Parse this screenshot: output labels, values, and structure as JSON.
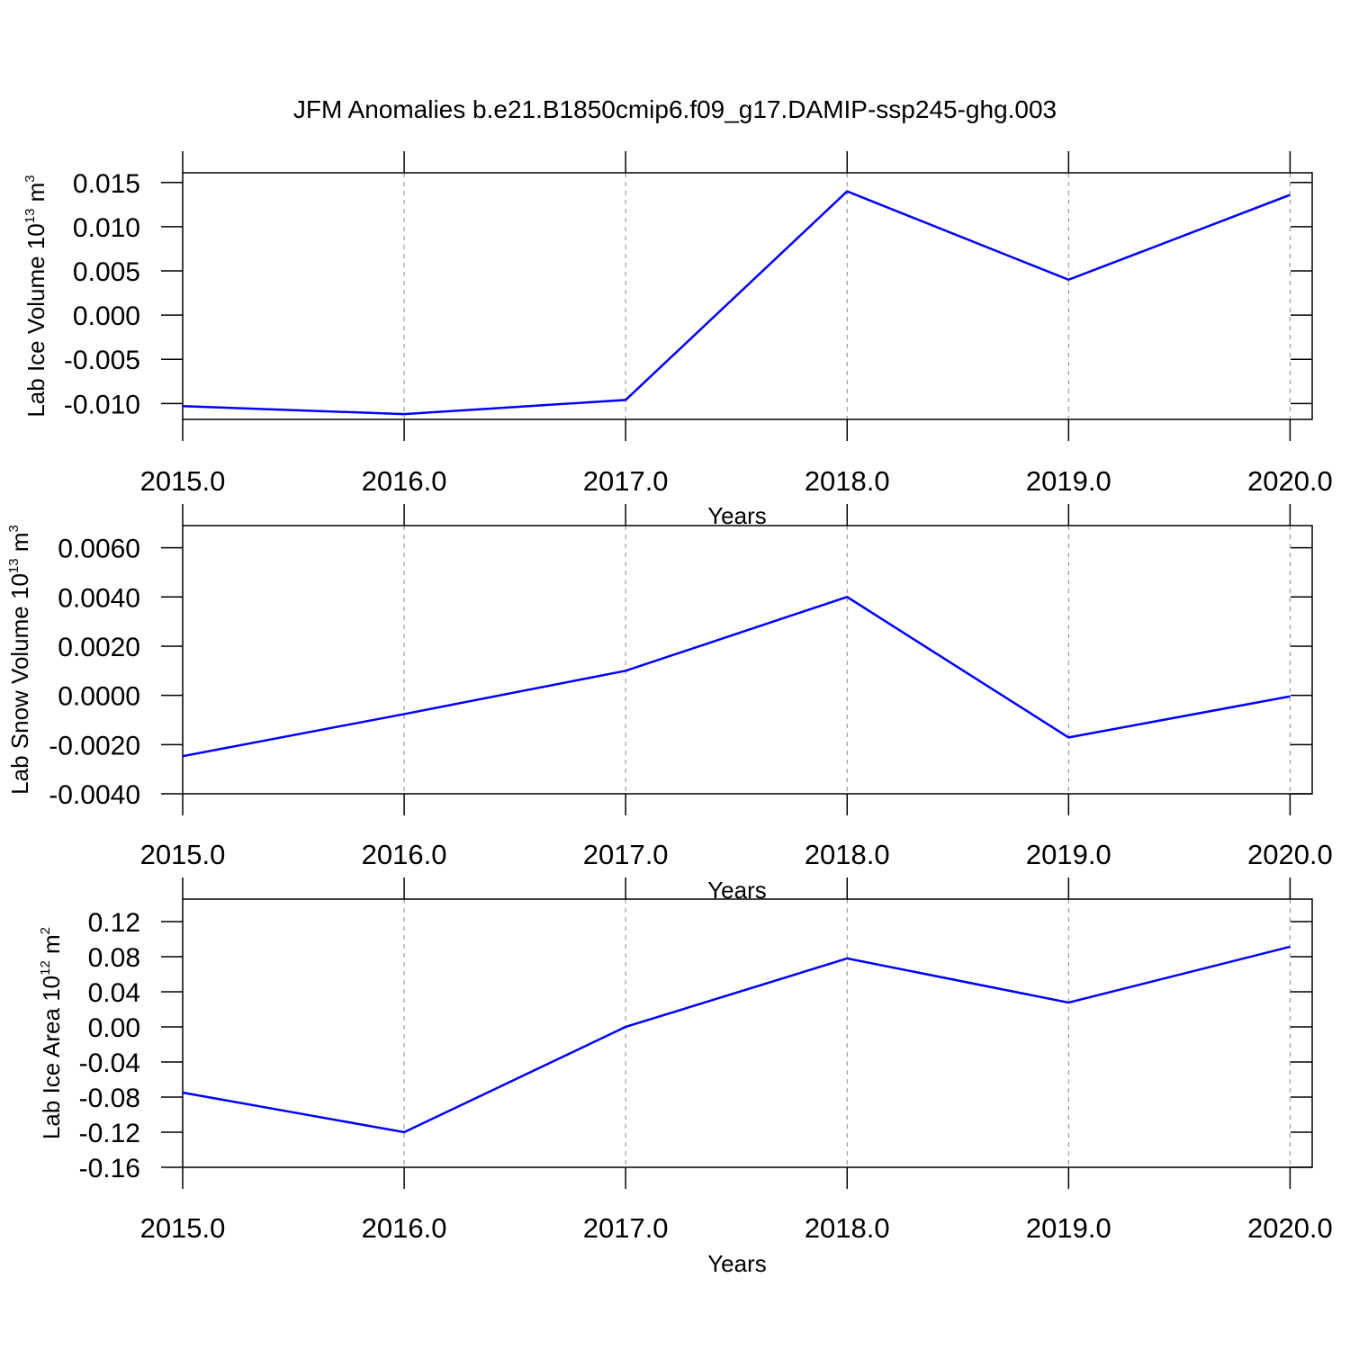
{
  "title": "JFM Anomalies b.e21.B1850cmip6.f09_g17.DAMIP-ssp245-ghg.003",
  "chart_data": [
    {
      "type": "line",
      "x_label": "Years",
      "y_label": {
        "text": "Lab Ice Volume 10",
        "exponent": "13",
        "unit": " m",
        "unit_power": "3"
      },
      "x": [
        2015,
        2016,
        2017,
        2018,
        2019,
        2020
      ],
      "values": [
        -0.0103,
        -0.0112,
        -0.0096,
        0.014,
        0.004,
        0.0136
      ],
      "color": "#0000ff",
      "xlim": [
        2015,
        2020.1
      ],
      "xticks": [
        {
          "value": 2015,
          "label": "2015.0"
        },
        {
          "value": 2016,
          "label": "2016.0"
        },
        {
          "value": 2017,
          "label": "2017.0"
        },
        {
          "value": 2018,
          "label": "2018.0"
        },
        {
          "value": 2019,
          "label": "2019.0"
        },
        {
          "value": 2020,
          "label": "2020.0"
        }
      ],
      "ylim": [
        -0.0118,
        0.0161
      ],
      "yticks": [
        {
          "value": -0.01,
          "label": "-0.010"
        },
        -0.005,
        {
          "value": 0,
          "label": "0.000"
        },
        0.005,
        {
          "value": 0.01,
          "label": "0.010"
        },
        0.015
      ],
      "grid": "x"
    },
    {
      "type": "line",
      "x_label": "Years",
      "y_label": {
        "text": "Lab Snow Volume 10",
        "exponent": "13",
        "unit": " m",
        "unit_power": "3"
      },
      "x": [
        2015,
        2016,
        2017,
        2018,
        2019,
        2020
      ],
      "values": [
        -0.00247,
        -0.00076,
        0.001,
        0.004,
        -0.00171,
        -4e-05
      ],
      "color": "#0000ff",
      "xlim": [
        2015,
        2020.1
      ],
      "xticks": [
        {
          "value": 2015,
          "label": "2015.0"
        },
        {
          "value": 2016,
          "label": "2016.0"
        },
        {
          "value": 2017,
          "label": "2017.0"
        },
        {
          "value": 2018,
          "label": "2018.0"
        },
        {
          "value": 2019,
          "label": "2019.0"
        },
        {
          "value": 2020,
          "label": "2020.0"
        }
      ],
      "ylim": [
        -0.004,
        0.0069
      ],
      "yticks": [
        {
          "value": -0.004,
          "label": "-0.0040"
        },
        {
          "value": -0.002,
          "label": "-0.0020"
        },
        {
          "value": 0,
          "label": "0.0000"
        },
        {
          "value": 0.002,
          "label": "0.0020"
        },
        {
          "value": 0.004,
          "label": "0.0040"
        },
        {
          "value": 0.006,
          "label": "0.0060"
        }
      ],
      "grid": "x"
    },
    {
      "type": "line",
      "x_label": "Years",
      "y_label": {
        "text": "Lab Ice Area 10",
        "exponent": "12",
        "unit": " m",
        "unit_power": "2"
      },
      "x": [
        2015,
        2016,
        2017,
        2018,
        2019,
        2020
      ],
      "values": [
        -0.0749,
        -0.12,
        0.0,
        0.078,
        0.0277,
        0.0913
      ],
      "color": "#0000ff",
      "xlim": [
        2015,
        2020.1
      ],
      "xticks": [
        {
          "value": 2015,
          "label": "2015.0"
        },
        {
          "value": 2016,
          "label": "2016.0"
        },
        {
          "value": 2017,
          "label": "2017.0"
        },
        {
          "value": 2018,
          "label": "2018.0"
        },
        {
          "value": 2019,
          "label": "2019.0"
        },
        {
          "value": 2020,
          "label": "2020.0"
        }
      ],
      "ylim": [
        -0.16,
        0.1456
      ],
      "yticks": [
        -0.16,
        -0.12,
        -0.08,
        -0.04,
        {
          "value": 0,
          "label": "0.00"
        },
        0.04,
        0.08,
        0.12
      ],
      "grid": "x"
    }
  ]
}
